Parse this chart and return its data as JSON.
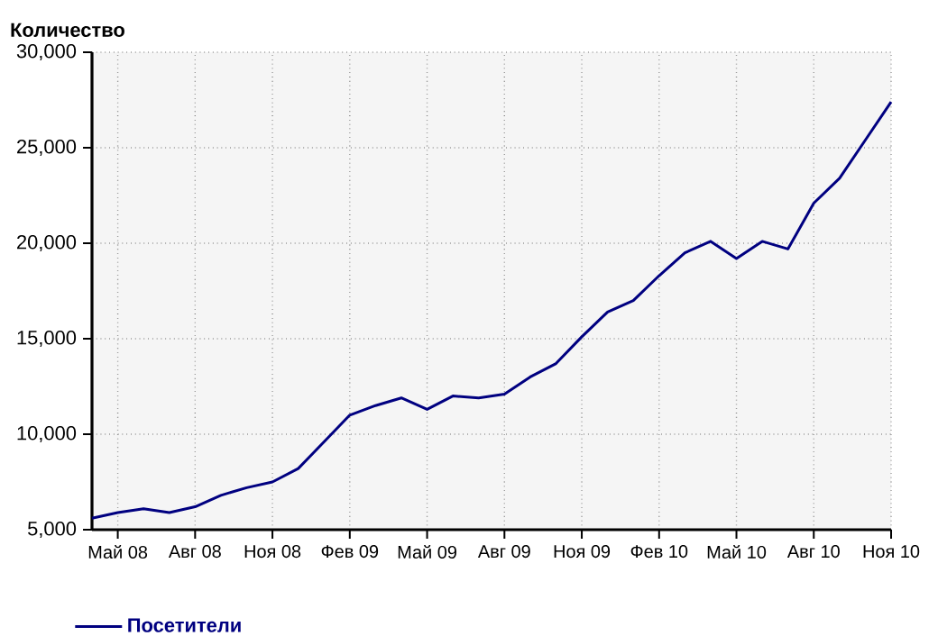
{
  "chart_data": {
    "type": "line",
    "ylabel": "Количество",
    "x": [
      "2008-04",
      "2008-05",
      "2008-06",
      "2008-07",
      "2008-08",
      "2008-09",
      "2008-10",
      "2008-11",
      "2008-12",
      "2009-01",
      "2009-02",
      "2009-03",
      "2009-04",
      "2009-05",
      "2009-06",
      "2009-07",
      "2009-08",
      "2009-09",
      "2009-10",
      "2009-11",
      "2009-12",
      "2010-01",
      "2010-02",
      "2010-03",
      "2010-04",
      "2010-05",
      "2010-06",
      "2010-07",
      "2010-08",
      "2010-09",
      "2010-10",
      "2010-11"
    ],
    "series": [
      {
        "name": "Посетители",
        "color": "#000080",
        "values": [
          5600,
          5900,
          6100,
          5900,
          6200,
          6800,
          7200,
          7500,
          8200,
          9600,
          11000,
          11500,
          11900,
          11300,
          12000,
          11900,
          12100,
          13000,
          13700,
          15100,
          16400,
          17000,
          18300,
          19500,
          20100,
          19200,
          20100,
          19700,
          22100,
          23400,
          25400,
          27400
        ]
      }
    ],
    "xlim": [
      "2008-04",
      "2010-11"
    ],
    "xticks": [
      {
        "value": "2008-05",
        "label": "Май 08"
      },
      {
        "value": "2008-08",
        "label": "Авг 08"
      },
      {
        "value": "2008-11",
        "label": "Ноя 08"
      },
      {
        "value": "2009-02",
        "label": "Фев 09"
      },
      {
        "value": "2009-05",
        "label": "Май 09"
      },
      {
        "value": "2009-08",
        "label": "Авг 09"
      },
      {
        "value": "2009-11",
        "label": "Ноя 09"
      },
      {
        "value": "2010-02",
        "label": "Фев 10"
      },
      {
        "value": "2010-05",
        "label": "Май 10"
      },
      {
        "value": "2010-08",
        "label": "Авг 10"
      },
      {
        "value": "2010-11",
        "label": "Ноя 10"
      }
    ],
    "ylim": [
      5000,
      30000
    ],
    "yticks": [
      {
        "value": 5000,
        "label": "5,000"
      },
      {
        "value": 10000,
        "label": "10,000"
      },
      {
        "value": 15000,
        "label": "15,000"
      },
      {
        "value": 20000,
        "label": "20,000"
      },
      {
        "value": 25000,
        "label": "25,000"
      },
      {
        "value": 30000,
        "label": "30,000"
      }
    ],
    "grid": true,
    "legend": "bottom left",
    "marker": "none",
    "line_style": "solid"
  }
}
